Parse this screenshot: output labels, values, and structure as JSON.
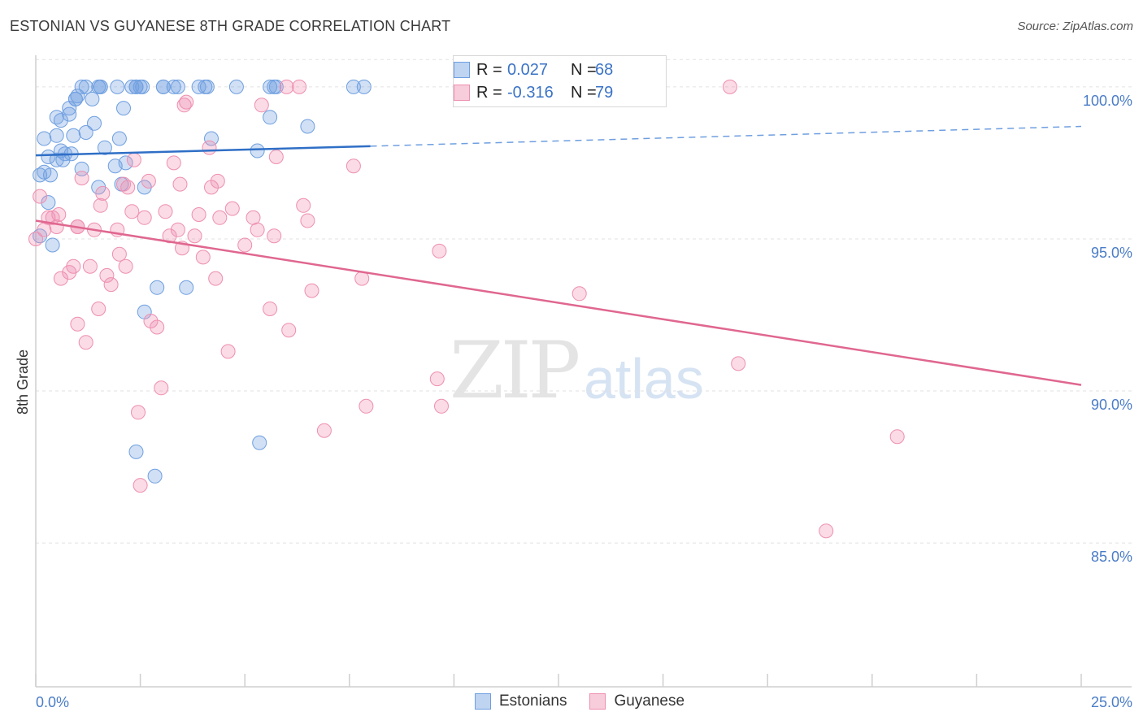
{
  "title": "ESTONIAN VS GUYANESE 8TH GRADE CORRELATION CHART",
  "source": "Source: ZipAtlas.com",
  "watermark": {
    "zip": "ZIP",
    "atlas": "atlas"
  },
  "legend": {
    "rows": [
      {
        "r_label": "R =",
        "r_value": "0.027",
        "n_label": "N =",
        "n_value": "68",
        "color": "#6f9fe0"
      },
      {
        "r_label": "R =",
        "r_value": "-0.316",
        "n_label": "N =",
        "n_value": "79",
        "color": "#ee8fb0"
      }
    ]
  },
  "bottom_legend": [
    {
      "label": "Estonians",
      "color": "#6f9fe0"
    },
    {
      "label": "Guyanese",
      "color": "#ee8fb0"
    }
  ],
  "chart_data": {
    "type": "scatter",
    "title": "ESTONIAN VS GUYANESE 8TH GRADE CORRELATION CHART",
    "xlabel": "",
    "ylabel": "8th Grade",
    "xlim": [
      0,
      25
    ],
    "ylim": [
      80.3,
      101.2
    ],
    "x_tick_labels": [
      {
        "x": 0,
        "label": "0.0%"
      },
      {
        "x": 25,
        "label": "25.0%"
      }
    ],
    "y_ticks": [
      {
        "y": 100,
        "label": "100.0%"
      },
      {
        "y": 95,
        "label": "95.0%"
      },
      {
        "y": 90,
        "label": "90.0%"
      },
      {
        "y": 85,
        "label": "85.0%"
      }
    ],
    "series": [
      {
        "name": "Estonians",
        "color": "#6f9fe0",
        "trend": {
          "x0": 0,
          "y0": 97.75,
          "x1": 8.0,
          "y1": 98.05,
          "x_dash_end": 25,
          "y_dash_end": 98.7
        },
        "points": [
          [
            0.1,
            95.1
          ],
          [
            0.1,
            97.1
          ],
          [
            0.2,
            97.2
          ],
          [
            0.2,
            98.3
          ],
          [
            0.3,
            97.7
          ],
          [
            0.3,
            96.2
          ],
          [
            0.35,
            97.1
          ],
          [
            0.4,
            94.8
          ],
          [
            0.5,
            98.4
          ],
          [
            0.5,
            99.0
          ],
          [
            0.6,
            98.9
          ],
          [
            0.6,
            97.9
          ],
          [
            0.65,
            97.6
          ],
          [
            0.7,
            97.8
          ],
          [
            0.8,
            99.1
          ],
          [
            0.8,
            99.3
          ],
          [
            0.85,
            97.8
          ],
          [
            0.9,
            98.4
          ],
          [
            0.95,
            99.6
          ],
          [
            1.0,
            99.7
          ],
          [
            1.1,
            100.0
          ],
          [
            1.1,
            97.3
          ],
          [
            1.2,
            98.5
          ],
          [
            1.2,
            100.0
          ],
          [
            1.35,
            99.6
          ],
          [
            1.4,
            98.8
          ],
          [
            1.5,
            100.0
          ],
          [
            1.55,
            100.0
          ],
          [
            1.5,
            96.7
          ],
          [
            1.65,
            98.0
          ],
          [
            1.9,
            97.4
          ],
          [
            1.95,
            100.0
          ],
          [
            2.0,
            98.3
          ],
          [
            2.05,
            96.8
          ],
          [
            2.1,
            99.3
          ],
          [
            2.15,
            97.5
          ],
          [
            2.3,
            100.0
          ],
          [
            2.4,
            100.0
          ],
          [
            2.5,
            100.0
          ],
          [
            2.55,
            100.0
          ],
          [
            2.4,
            88.0
          ],
          [
            2.6,
            96.7
          ],
          [
            2.6,
            92.6
          ],
          [
            2.85,
            87.2
          ],
          [
            2.9,
            93.4
          ],
          [
            3.05,
            100.0
          ],
          [
            3.3,
            100.0
          ],
          [
            3.4,
            100.0
          ],
          [
            3.6,
            93.4
          ],
          [
            3.9,
            100.0
          ],
          [
            4.1,
            100.0
          ],
          [
            4.2,
            98.3
          ],
          [
            4.8,
            100.0
          ],
          [
            5.3,
            97.9
          ],
          [
            5.6,
            100.0
          ],
          [
            5.7,
            100.0
          ],
          [
            5.75,
            100.0
          ],
          [
            5.6,
            99.0
          ],
          [
            5.35,
            88.3
          ],
          [
            6.5,
            98.7
          ],
          [
            7.6,
            100.0
          ],
          [
            7.85,
            100.0
          ],
          [
            3.05,
            100.0
          ],
          [
            4.05,
            100.0
          ],
          [
            0.95,
            99.6
          ],
          [
            1.55,
            100.0
          ],
          [
            2.4,
            100.0
          ],
          [
            0.5,
            97.6
          ]
        ]
      },
      {
        "name": "Guyanese",
        "color": "#ee8fb0",
        "trend": {
          "x0": 0,
          "y0": 95.6,
          "x1": 25,
          "y1": 90.2
        },
        "points": [
          [
            0.0,
            95.0
          ],
          [
            0.1,
            96.4
          ],
          [
            0.2,
            95.3
          ],
          [
            0.3,
            95.7
          ],
          [
            0.4,
            95.7
          ],
          [
            0.5,
            95.4
          ],
          [
            0.55,
            95.8
          ],
          [
            0.6,
            93.7
          ],
          [
            0.8,
            93.9
          ],
          [
            0.9,
            94.1
          ],
          [
            1.0,
            95.4
          ],
          [
            1.0,
            92.2
          ],
          [
            1.1,
            97.0
          ],
          [
            1.2,
            91.6
          ],
          [
            1.3,
            94.1
          ],
          [
            1.4,
            95.3
          ],
          [
            1.5,
            92.7
          ],
          [
            1.55,
            96.1
          ],
          [
            1.6,
            96.5
          ],
          [
            1.7,
            93.8
          ],
          [
            1.8,
            93.5
          ],
          [
            1.95,
            95.3
          ],
          [
            2.0,
            94.5
          ],
          [
            2.1,
            96.8
          ],
          [
            2.15,
            94.1
          ],
          [
            2.2,
            96.7
          ],
          [
            2.3,
            95.9
          ],
          [
            2.35,
            97.6
          ],
          [
            2.45,
            89.3
          ],
          [
            2.5,
            86.9
          ],
          [
            2.6,
            95.7
          ],
          [
            2.7,
            96.9
          ],
          [
            2.75,
            92.3
          ],
          [
            2.9,
            92.1
          ],
          [
            3.0,
            90.1
          ],
          [
            3.1,
            95.9
          ],
          [
            3.2,
            95.1
          ],
          [
            3.3,
            97.5
          ],
          [
            3.4,
            95.3
          ],
          [
            3.45,
            96.8
          ],
          [
            3.5,
            94.7
          ],
          [
            3.6,
            99.5
          ],
          [
            3.8,
            95.1
          ],
          [
            3.9,
            95.8
          ],
          [
            4.0,
            94.4
          ],
          [
            4.15,
            98.0
          ],
          [
            4.2,
            96.7
          ],
          [
            4.3,
            93.7
          ],
          [
            4.35,
            96.9
          ],
          [
            4.4,
            95.7
          ],
          [
            4.6,
            91.3
          ],
          [
            4.7,
            96.0
          ],
          [
            5.0,
            94.8
          ],
          [
            5.2,
            95.7
          ],
          [
            5.3,
            95.3
          ],
          [
            5.4,
            99.4
          ],
          [
            5.6,
            92.7
          ],
          [
            5.7,
            95.1
          ],
          [
            5.75,
            97.7
          ],
          [
            6.0,
            100.0
          ],
          [
            6.05,
            92.0
          ],
          [
            6.3,
            100.0
          ],
          [
            6.4,
            96.1
          ],
          [
            6.5,
            95.6
          ],
          [
            6.6,
            93.3
          ],
          [
            6.9,
            88.7
          ],
          [
            7.6,
            97.4
          ],
          [
            7.8,
            93.7
          ],
          [
            7.9,
            89.5
          ],
          [
            9.6,
            90.4
          ],
          [
            9.65,
            94.6
          ],
          [
            9.7,
            89.5
          ],
          [
            13.0,
            93.2
          ],
          [
            16.6,
            100.0
          ],
          [
            16.8,
            90.9
          ],
          [
            18.9,
            85.4
          ],
          [
            20.6,
            88.5
          ],
          [
            3.55,
            99.4
          ],
          [
            1.0,
            95.4
          ]
        ]
      }
    ]
  }
}
